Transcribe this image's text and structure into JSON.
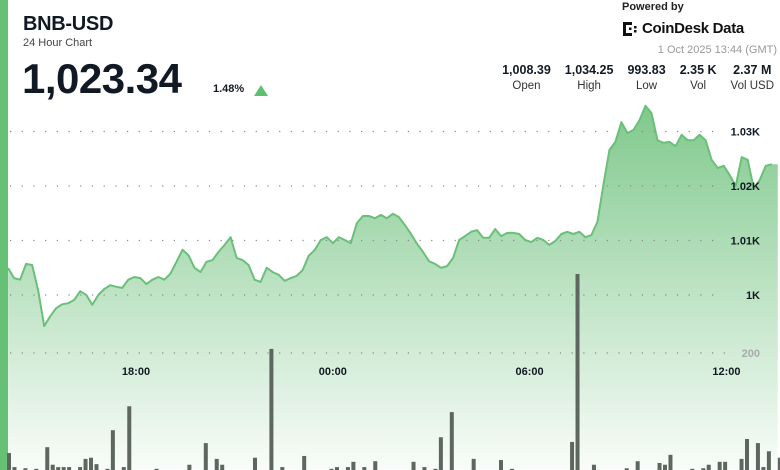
{
  "header": {
    "symbol": "BNB-USD",
    "subtitle": "24 Hour Chart",
    "price": "1,023.34",
    "change": "1.48%",
    "change_direction": "up",
    "powered_by": "Powered by",
    "brand": "CoinDesk Data",
    "timestamp": "1 Oct 2025 13:44 (GMT)"
  },
  "stats": [
    {
      "value": "1,008.39",
      "label": "Open"
    },
    {
      "value": "1,034.25",
      "label": "High"
    },
    {
      "value": "993.83",
      "label": "Low"
    },
    {
      "value": "2.35 K",
      "label": "Vol"
    },
    {
      "value": "2.37 M",
      "label": "Vol USD"
    }
  ],
  "colors": {
    "accent": "#66c176",
    "line": "#6abf79",
    "volume": "#5d665f",
    "text": "#111a24"
  },
  "chart_data": {
    "type": "area",
    "grid": true,
    "x_ticks": [
      "18:00",
      "00:00",
      "06:00",
      "12:00"
    ],
    "y_ticks": [
      {
        "value": 1030,
        "label": "1.03K"
      },
      {
        "value": 1020,
        "label": "1.02K"
      },
      {
        "value": 1010,
        "label": "1.01K"
      },
      {
        "value": 1000,
        "label": "1K"
      }
    ],
    "volume_ticks": [
      {
        "value": 200,
        "label": "200"
      }
    ],
    "price_start": "14:06",
    "price_step_minutes": 11,
    "price": [
      1004.95,
      1003.1,
      1002.8,
      1005.7,
      1005.5,
      1000.9,
      994.3,
      996.1,
      997.6,
      998.3,
      998.5,
      999.1,
      1000.7,
      1000.0,
      998.2,
      1000.0,
      1001.1,
      1001.8,
      1001.5,
      1001.3,
      1002.8,
      1003.3,
      1003.1,
      1002.0,
      1002.8,
      1003.3,
      1002.8,
      1003.9,
      1006.1,
      1008.3,
      1007.3,
      1005.0,
      1004.2,
      1006.1,
      1006.4,
      1007.9,
      1009.2,
      1010.6,
      1006.8,
      1006.4,
      1005.5,
      1002.8,
      1002.4,
      1005.0,
      1004.2,
      1003.7,
      1002.6,
      1003.1,
      1003.5,
      1004.6,
      1007.2,
      1008.3,
      1010.1,
      1010.6,
      1009.5,
      1010.6,
      1010.1,
      1009.5,
      1013.2,
      1014.5,
      1014.5,
      1014.1,
      1014.7,
      1014.1,
      1014.9,
      1014.3,
      1012.8,
      1011.2,
      1009.4,
      1007.9,
      1006.2,
      1005.7,
      1005.0,
      1005.3,
      1006.8,
      1010.1,
      1010.8,
      1011.6,
      1011.9,
      1010.5,
      1010.5,
      1012.1,
      1010.8,
      1011.4,
      1011.4,
      1011.2,
      1010.1,
      1009.7,
      1010.5,
      1010.1,
      1009.2,
      1009.9,
      1011.2,
      1011.6,
      1011.2,
      1011.6,
      1010.6,
      1011.0,
      1013.4,
      1020.2,
      1026.6,
      1028.1,
      1031.7,
      1029.7,
      1030.3,
      1032.1,
      1034.7,
      1033.4,
      1028.4,
      1027.9,
      1028.1,
      1027.3,
      1029.4,
      1028.4,
      1028.4,
      1029.4,
      1028.4,
      1024.8,
      1023.3,
      1023.7,
      1022.0,
      1020.0,
      1025.3,
      1024.8,
      1019.6,
      1021.1,
      1023.7,
      1024.0
    ],
    "volume_step_minutes": 10,
    "volume": [
      29,
      5,
      0,
      3,
      0,
      2,
      0,
      39,
      9,
      5,
      5,
      5,
      0,
      5,
      19,
      21,
      10,
      0,
      2,
      68,
      0,
      5,
      109,
      0,
      0,
      0,
      0,
      2,
      0,
      0,
      0,
      0,
      0,
      9,
      0,
      0,
      46,
      0,
      19,
      9,
      0,
      0,
      0,
      0,
      0,
      21,
      0,
      0,
      207,
      0,
      5,
      0,
      0,
      0,
      24,
      0,
      0,
      0,
      0,
      2,
      5,
      0,
      5,
      14,
      0,
      5,
      0,
      15,
      0,
      0,
      0,
      0,
      0,
      0,
      14,
      0,
      5,
      0,
      2,
      56,
      0,
      99,
      0,
      0,
      0,
      19,
      0,
      0,
      0,
      0,
      17,
      0,
      2,
      0,
      0,
      0,
      0,
      0,
      0,
      0,
      0,
      0,
      0,
      48,
      335,
      0,
      0,
      9,
      0,
      0,
      0,
      0,
      0,
      3,
      0,
      15,
      0,
      0,
      0,
      12,
      9,
      26,
      0,
      0,
      0,
      2,
      0,
      3,
      9,
      0,
      14,
      14,
      0,
      0,
      19,
      53,
      0,
      46,
      5,
      32,
      0,
      21,
      29,
      0
    ]
  }
}
